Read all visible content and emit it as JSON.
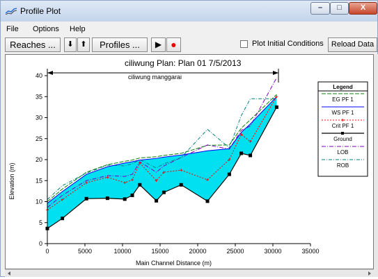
{
  "window": {
    "title": "Profile Plot",
    "min_glyph": "–",
    "max_glyph": "□",
    "close_glyph": "X"
  },
  "menu": [
    {
      "label": "File"
    },
    {
      "label": "Options"
    },
    {
      "label": "Help"
    }
  ],
  "toolbar": {
    "reaches_label": "Reaches ...",
    "down_label": "⬇",
    "up_label": "⬆",
    "profiles_label": "Profiles ...",
    "play_label": "▶",
    "record_label": "●",
    "plot_initial_label": "Plot Initial Conditions",
    "plot_initial_checked": false,
    "reload_label": "Reload Data"
  },
  "colors": {
    "ws_fill": "#00e0f0",
    "eg": "#008000",
    "ws": "#0000ff",
    "crit": "#ff0000",
    "ground": "#000000",
    "lob": "#8000c0",
    "rob": "#008080"
  },
  "chart_data": {
    "type": "line",
    "title": "ciliwung       Plan: Plan 01     7/5/2013",
    "annotation": "ciliwung manggarai",
    "xlabel": "Main Channel Distance (m)",
    "ylabel": "Elevation (m)",
    "xlim": [
      0,
      35000
    ],
    "ylim": [
      0,
      40
    ],
    "xticks": [
      0,
      5000,
      10000,
      15000,
      20000,
      25000,
      30000,
      35000
    ],
    "yticks": [
      0,
      5,
      10,
      15,
      20,
      25,
      30,
      35,
      40
    ],
    "legend_title": "Legend",
    "legend_position": "right",
    "series": [
      {
        "name": "EG  PF 1",
        "values": [
          [
            0,
            10
          ],
          [
            2000,
            13
          ],
          [
            5200,
            17
          ],
          [
            8000,
            18.8
          ],
          [
            10300,
            19.6
          ],
          [
            11300,
            19.9
          ],
          [
            12300,
            20.4
          ],
          [
            14500,
            20.7
          ],
          [
            15500,
            21
          ],
          [
            17800,
            21.5
          ],
          [
            21300,
            23.4
          ],
          [
            24200,
            23.5
          ],
          [
            25800,
            27.5
          ],
          [
            27000,
            29.5
          ],
          [
            30500,
            35.5
          ]
        ]
      },
      {
        "name": "WS  PF 1",
        "values": [
          [
            0,
            9.6
          ],
          [
            2000,
            12.4
          ],
          [
            5200,
            16.5
          ],
          [
            8000,
            18.3
          ],
          [
            10300,
            19.2
          ],
          [
            11300,
            19.5
          ],
          [
            12300,
            19.9
          ],
          [
            14500,
            20.3
          ],
          [
            15500,
            20.6
          ],
          [
            17800,
            21.1
          ],
          [
            21300,
            22.1
          ],
          [
            24200,
            22.6
          ],
          [
            25800,
            26.5
          ],
          [
            27000,
            28.5
          ],
          [
            30500,
            35
          ]
        ]
      },
      {
        "name": "Crit  PF 1",
        "values": [
          [
            0,
            8
          ],
          [
            2000,
            10.5
          ],
          [
            5200,
            14.5
          ],
          [
            8000,
            15.8
          ],
          [
            10300,
            14.5
          ],
          [
            11300,
            15.2
          ],
          [
            12300,
            19.2
          ],
          [
            14500,
            15
          ],
          [
            15500,
            17
          ],
          [
            17800,
            17.5
          ],
          [
            21300,
            15.2
          ],
          [
            24200,
            20
          ],
          [
            25800,
            26
          ],
          [
            27000,
            24.3
          ],
          [
            30500,
            35
          ]
        ]
      },
      {
        "name": "Ground",
        "values": [
          [
            0,
            3.6
          ],
          [
            2000,
            6
          ],
          [
            5200,
            10.7
          ],
          [
            8000,
            10.8
          ],
          [
            10300,
            10.6
          ],
          [
            11300,
            11.5
          ],
          [
            12300,
            14
          ],
          [
            14500,
            10.2
          ],
          [
            15500,
            12.2
          ],
          [
            17800,
            14
          ],
          [
            21300,
            10.1
          ],
          [
            24200,
            16.5
          ],
          [
            25800,
            21.5
          ],
          [
            27000,
            21
          ],
          [
            30500,
            32.5
          ]
        ]
      },
      {
        "name": "LOB",
        "values": [
          [
            0,
            8.6
          ],
          [
            2000,
            11.5
          ],
          [
            5200,
            15
          ],
          [
            8000,
            16.2
          ],
          [
            10300,
            16
          ],
          [
            11300,
            16.5
          ],
          [
            12300,
            19.5
          ],
          [
            14500,
            17
          ],
          [
            15500,
            18.5
          ],
          [
            17800,
            20.5
          ],
          [
            21300,
            23.5
          ],
          [
            24200,
            22.5
          ],
          [
            25800,
            27
          ],
          [
            27000,
            28
          ],
          [
            30500,
            39.5
          ]
        ]
      },
      {
        "name": "ROB",
        "values": [
          [
            0,
            10.5
          ],
          [
            2000,
            13.8
          ],
          [
            5200,
            16.8
          ],
          [
            8000,
            18.7
          ],
          [
            10300,
            18.5
          ],
          [
            11300,
            19
          ],
          [
            12300,
            20
          ],
          [
            14500,
            18
          ],
          [
            15500,
            19
          ],
          [
            17800,
            20.5
          ],
          [
            21300,
            27.2
          ],
          [
            24200,
            22.8
          ],
          [
            25800,
            30.5
          ],
          [
            27000,
            34.5
          ],
          [
            30500,
            34.5
          ]
        ]
      }
    ]
  }
}
